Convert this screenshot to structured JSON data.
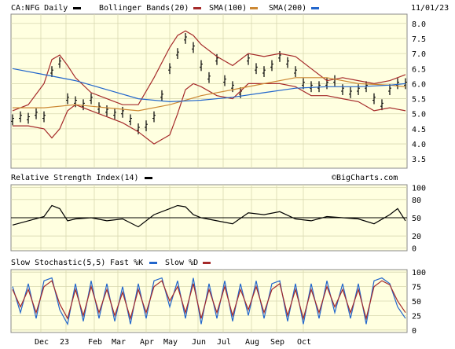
{
  "header": {
    "symbol_label": "CA:NFG Daily",
    "date": "11/01/23",
    "legend": [
      {
        "text": "Bollinger Bands(20)",
        "color": "#a52a2a"
      },
      {
        "text": "SMA(100)",
        "color": "#cc8833"
      },
      {
        "text": "SMA(200)",
        "color": "#2266cc"
      }
    ],
    "symbol_swatch_color": "#000000"
  },
  "watermark": "©BigCharts.com",
  "colors": {
    "panel_bg": "#ffffe0",
    "grid": "#d8d8b0",
    "price_bars": "#000000",
    "bollinger": "#a52a2a",
    "sma100": "#cc8833",
    "sma200": "#2266cc",
    "rsi_line": "#000000",
    "fast_k": "#2266cc",
    "slow_d": "#a52a2a"
  },
  "chart_data": [
    {
      "type": "line",
      "panel": "price",
      "ylim": [
        3.5,
        8.0
      ],
      "y_ticks": [
        "8.0",
        "7.5",
        "7.0",
        "6.5",
        "6.0",
        "5.5",
        "5.0",
        "4.5",
        "4.0",
        "3.5"
      ],
      "series": [
        {
          "name": "CA:NFG Daily",
          "style": "ohlc-bars",
          "x": [
            0,
            5,
            10,
            15,
            20,
            25,
            30,
            35,
            40,
            45,
            50,
            55,
            60,
            65,
            70,
            75,
            80,
            85,
            90,
            95,
            100,
            105,
            110,
            115,
            120,
            125,
            130,
            135,
            140,
            145,
            150,
            155,
            160,
            165,
            170,
            175,
            180,
            185,
            190,
            195,
            200,
            205,
            210,
            215,
            220,
            225,
            230,
            235,
            240,
            245,
            250
          ],
          "values": [
            4.8,
            4.9,
            4.85,
            5.0,
            4.9,
            6.4,
            6.7,
            5.5,
            5.4,
            5.3,
            5.5,
            5.2,
            5.1,
            5.0,
            5.05,
            4.8,
            4.5,
            4.6,
            4.9,
            5.6,
            6.5,
            7.0,
            7.5,
            7.2,
            6.6,
            6.2,
            6.8,
            6.1,
            5.9,
            5.7,
            6.8,
            6.5,
            6.4,
            6.6,
            6.9,
            6.7,
            6.4,
            6.0,
            5.9,
            5.9,
            6.0,
            6.1,
            5.8,
            5.7,
            5.8,
            5.9,
            5.5,
            5.3,
            5.8,
            6.0,
            6.0
          ]
        },
        {
          "name": "Bollinger Bands(20) upper",
          "x": [
            0,
            10,
            20,
            25,
            30,
            35,
            40,
            50,
            60,
            70,
            80,
            90,
            100,
            105,
            110,
            115,
            120,
            130,
            140,
            150,
            160,
            170,
            180,
            190,
            200,
            210,
            220,
            230,
            240,
            250
          ],
          "values": [
            5.1,
            5.3,
            6.0,
            6.8,
            6.95,
            6.6,
            6.2,
            5.7,
            5.5,
            5.3,
            5.3,
            6.2,
            7.2,
            7.6,
            7.75,
            7.6,
            7.3,
            6.9,
            6.6,
            7.0,
            6.9,
            7.0,
            6.9,
            6.5,
            6.1,
            6.2,
            6.1,
            6.0,
            6.1,
            6.3
          ]
        },
        {
          "name": "Bollinger Bands(20) lower",
          "x": [
            0,
            10,
            20,
            25,
            30,
            35,
            40,
            50,
            60,
            70,
            80,
            90,
            100,
            105,
            110,
            115,
            120,
            130,
            140,
            150,
            160,
            170,
            180,
            190,
            200,
            210,
            220,
            230,
            240,
            250
          ],
          "values": [
            4.6,
            4.6,
            4.5,
            4.2,
            4.5,
            5.1,
            5.3,
            5.1,
            4.9,
            4.7,
            4.4,
            4.0,
            4.3,
            5.0,
            5.8,
            6.0,
            5.9,
            5.6,
            5.5,
            6.0,
            6.0,
            6.0,
            5.9,
            5.6,
            5.6,
            5.5,
            5.4,
            5.1,
            5.2,
            5.1
          ]
        },
        {
          "name": "SMA(100)",
          "x": [
            0,
            20,
            40,
            60,
            80,
            100,
            120,
            140,
            160,
            180,
            200,
            220,
            240,
            250
          ],
          "values": [
            5.2,
            5.2,
            5.3,
            5.2,
            5.1,
            5.3,
            5.6,
            5.8,
            6.0,
            6.2,
            6.2,
            6.0,
            5.95,
            5.9
          ]
        },
        {
          "name": "SMA(200)",
          "x": [
            0,
            20,
            40,
            60,
            80,
            100,
            120,
            140,
            160,
            180,
            200,
            220,
            240,
            250
          ],
          "values": [
            6.5,
            6.3,
            6.1,
            5.8,
            5.5,
            5.4,
            5.45,
            5.55,
            5.7,
            5.85,
            5.9,
            5.9,
            5.95,
            6.0
          ]
        }
      ]
    },
    {
      "type": "line",
      "panel": "rsi",
      "title": "Relative Strength Index(14)",
      "ylim": [
        0,
        100
      ],
      "y_ticks": [
        "100",
        "80",
        "50",
        "20",
        "0"
      ],
      "reference_line": 50,
      "series": [
        {
          "name": "RSI(14)",
          "x": [
            0,
            10,
            20,
            25,
            30,
            35,
            40,
            50,
            60,
            70,
            80,
            90,
            100,
            105,
            110,
            115,
            120,
            130,
            140,
            150,
            160,
            170,
            180,
            190,
            200,
            210,
            220,
            230,
            240,
            245,
            250
          ],
          "values": [
            38,
            45,
            52,
            70,
            65,
            45,
            48,
            50,
            45,
            48,
            35,
            55,
            65,
            70,
            68,
            55,
            50,
            45,
            40,
            58,
            55,
            60,
            48,
            45,
            52,
            50,
            48,
            40,
            55,
            65,
            45
          ]
        }
      ]
    },
    {
      "type": "line",
      "panel": "stochastic",
      "title": "Slow Stochastic(5,5)",
      "legend": [
        {
          "text": "Fast %K",
          "color": "#2266cc"
        },
        {
          "text": "Slow %D",
          "color": "#a52a2a"
        }
      ],
      "ylim": [
        0,
        100
      ],
      "y_ticks": [
        "100",
        "75",
        "50",
        "25",
        "0"
      ],
      "series": [
        {
          "name": "Fast %K",
          "x": [
            0,
            5,
            10,
            15,
            20,
            25,
            30,
            35,
            40,
            45,
            50,
            55,
            60,
            65,
            70,
            75,
            80,
            85,
            90,
            95,
            100,
            105,
            110,
            115,
            120,
            125,
            130,
            135,
            140,
            145,
            150,
            155,
            160,
            165,
            170,
            175,
            180,
            185,
            190,
            195,
            200,
            205,
            210,
            215,
            220,
            225,
            230,
            235,
            240,
            245,
            250
          ],
          "values": [
            75,
            30,
            80,
            20,
            85,
            90,
            35,
            10,
            80,
            15,
            85,
            20,
            80,
            15,
            75,
            10,
            80,
            20,
            85,
            90,
            40,
            85,
            20,
            90,
            10,
            80,
            20,
            85,
            15,
            80,
            25,
            85,
            20,
            80,
            85,
            15,
            80,
            10,
            80,
            20,
            85,
            30,
            80,
            20,
            80,
            10,
            85,
            90,
            80,
            40,
            20
          ]
        },
        {
          "name": "Slow %D",
          "x": [
            0,
            5,
            10,
            15,
            20,
            25,
            30,
            35,
            40,
            45,
            50,
            55,
            60,
            65,
            70,
            75,
            80,
            85,
            90,
            95,
            100,
            105,
            110,
            115,
            120,
            125,
            130,
            135,
            140,
            145,
            150,
            155,
            160,
            165,
            170,
            175,
            180,
            185,
            190,
            195,
            200,
            205,
            210,
            215,
            220,
            225,
            230,
            235,
            240,
            245,
            250
          ],
          "values": [
            70,
            40,
            70,
            30,
            75,
            85,
            45,
            20,
            70,
            25,
            75,
            30,
            70,
            25,
            65,
            20,
            70,
            30,
            75,
            85,
            50,
            75,
            30,
            80,
            20,
            70,
            30,
            75,
            25,
            70,
            35,
            75,
            30,
            70,
            80,
            25,
            70,
            20,
            70,
            30,
            75,
            40,
            70,
            30,
            70,
            20,
            75,
            85,
            78,
            50,
            30
          ]
        }
      ]
    }
  ],
  "x_axis": {
    "labels": [
      "Dec",
      "23",
      "Feb",
      "Mar",
      "Apr",
      "May",
      "Jun",
      "Jul",
      "Aug",
      "Sep",
      "Oct"
    ],
    "positions": [
      18,
      34,
      52,
      67,
      85,
      100,
      118,
      134,
      152,
      168,
      185
    ]
  }
}
